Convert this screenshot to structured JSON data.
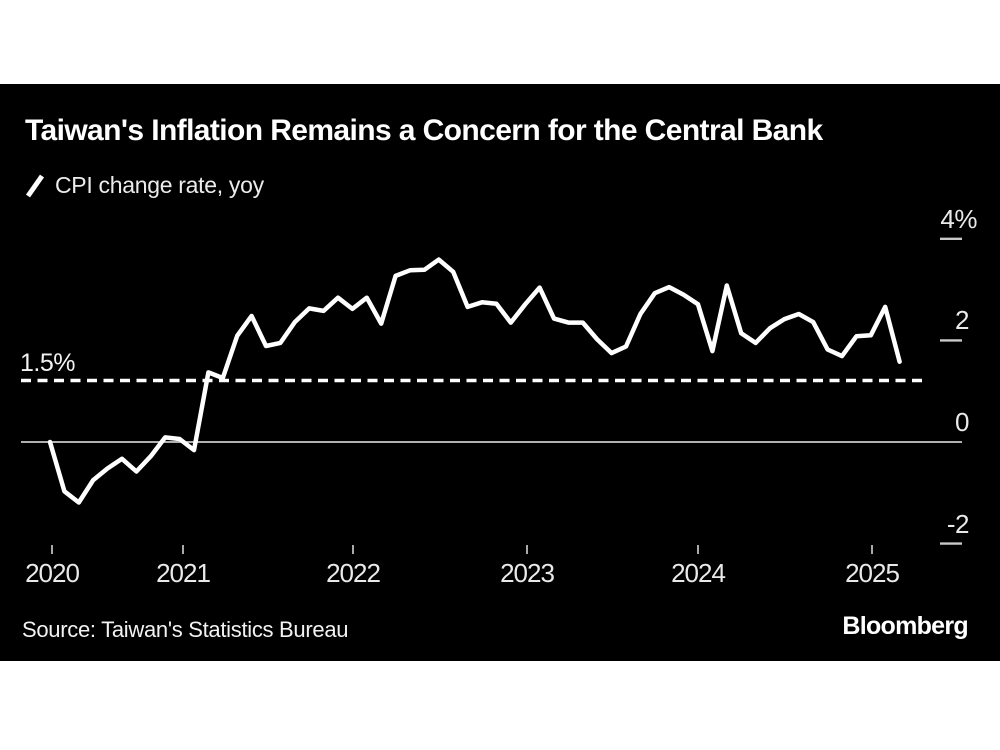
{
  "colors": {
    "page_background": "#ffffff",
    "card_background": "#000000",
    "series_line": "#ffffff",
    "reference_line": "#ffffff",
    "zero_axis_line": "#c9c9c9",
    "tick_mark": "#a9a9a9",
    "axis_label_text": "#e9e9e9",
    "title_text": "#ffffff"
  },
  "header": {
    "title": "Taiwan's Inflation Remains a Concern for the Central Bank",
    "legend": {
      "icon": "line-series-slash-icon",
      "label": "CPI change rate, yoy"
    }
  },
  "chart_data": {
    "type": "line",
    "title": "Taiwan's Inflation Remains a Concern for the Central Bank",
    "legend_entries": [
      "CPI change rate, yoy"
    ],
    "x": [
      "2020-03",
      "2020-04",
      "2020-05",
      "2020-06",
      "2020-07",
      "2020-08",
      "2020-09",
      "2020-10",
      "2020-11",
      "2020-12",
      "2021-01",
      "2021-02",
      "2021-03",
      "2021-04",
      "2021-05",
      "2021-06",
      "2021-07",
      "2021-08",
      "2021-09",
      "2021-10",
      "2021-11",
      "2021-12",
      "2022-01",
      "2022-02",
      "2022-03",
      "2022-04",
      "2022-05",
      "2022-06",
      "2022-07",
      "2022-08",
      "2022-09",
      "2022-10",
      "2022-11",
      "2022-12",
      "2023-01",
      "2023-02",
      "2023-03",
      "2023-04",
      "2023-05",
      "2023-06",
      "2023-07",
      "2023-08",
      "2023-09",
      "2023-10",
      "2023-11",
      "2023-12",
      "2024-01",
      "2024-02",
      "2024-03",
      "2024-04",
      "2024-05",
      "2024-06",
      "2024-07",
      "2024-08",
      "2024-09",
      "2024-10",
      "2024-11",
      "2024-12",
      "2025-01",
      "2025-02"
    ],
    "series": [
      {
        "name": "CPI change rate, yoy",
        "color": "#ffffff",
        "values": [
          0.0,
          -0.97,
          -1.19,
          -0.75,
          -0.52,
          -0.33,
          -0.58,
          -0.28,
          0.09,
          0.06,
          -0.16,
          1.37,
          1.26,
          2.09,
          2.48,
          1.89,
          1.95,
          2.36,
          2.63,
          2.58,
          2.84,
          2.62,
          2.84,
          2.33,
          3.27,
          3.38,
          3.39,
          3.59,
          3.35,
          2.66,
          2.75,
          2.72,
          2.35,
          2.71,
          3.04,
          2.43,
          2.35,
          2.35,
          2.02,
          1.75,
          1.88,
          2.52,
          2.93,
          3.05,
          2.9,
          2.71,
          1.79,
          3.08,
          2.14,
          1.95,
          2.24,
          2.42,
          2.52,
          2.36,
          1.82,
          1.69,
          2.08,
          2.1,
          2.66,
          1.58
        ]
      }
    ],
    "x_axis": {
      "tick_labels": [
        "2020",
        "2021",
        "2022",
        "2023",
        "2024",
        "2025"
      ]
    },
    "y_axis": {
      "side": "right",
      "unit": "%",
      "tick_labels": [
        "4%",
        "2",
        "0",
        "-2"
      ],
      "tick_values": [
        4,
        2,
        0,
        -2
      ],
      "range": [
        -2.8,
        4.4
      ]
    },
    "reference_line": {
      "label": "1.5%",
      "value": 1.5,
      "style": "dashed"
    },
    "zero_baseline": true,
    "grid": "off",
    "legend_position": "top-left"
  },
  "footer": {
    "source": "Source: Taiwan's Statistics Bureau",
    "brand": "Bloomberg"
  }
}
